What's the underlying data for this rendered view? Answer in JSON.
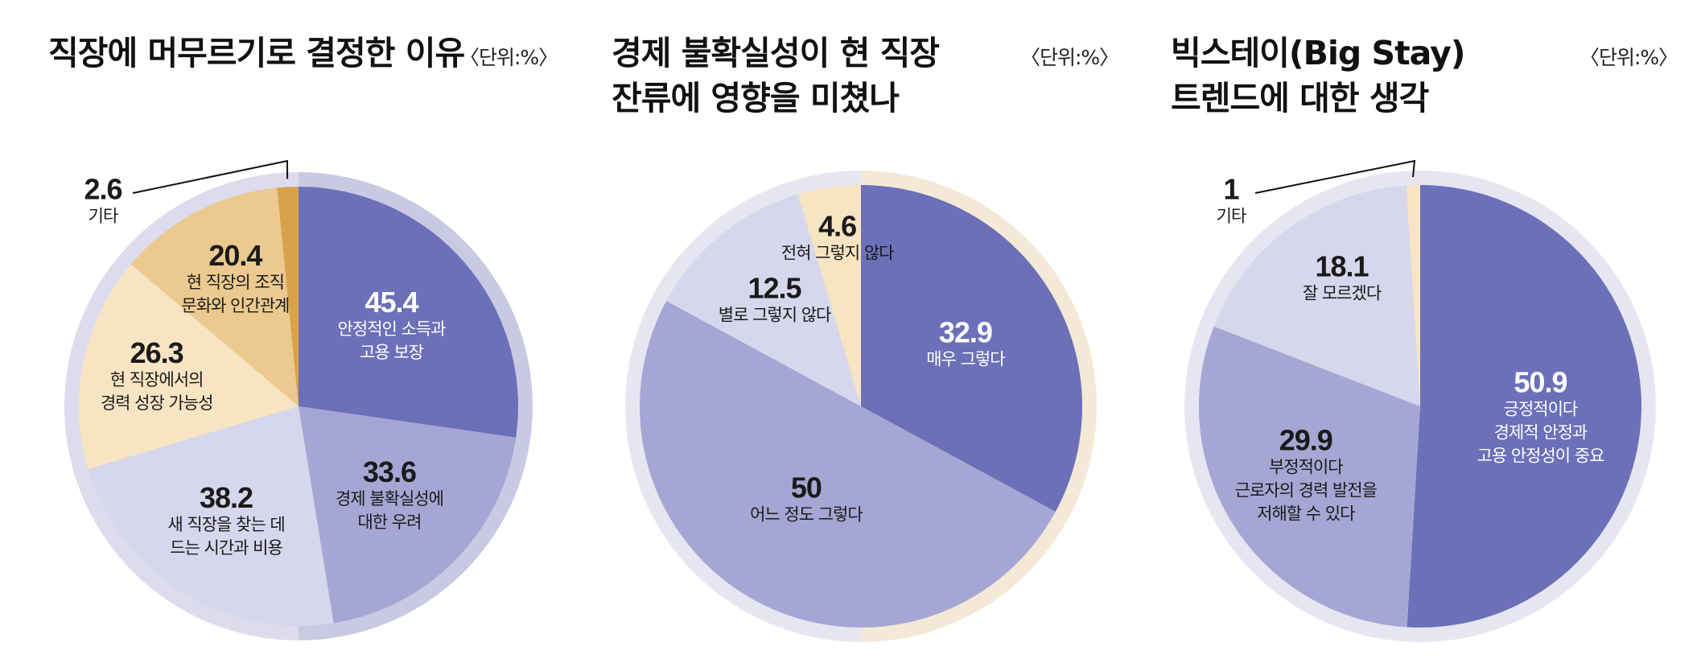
{
  "chart_data": [
    {
      "type": "pie",
      "title": "직장에 머무르기로 결정한 이유",
      "unit": "〈단위:%〉",
      "slices": [
        {
          "value": 45.4,
          "label": [
            "안정적인 소득과",
            "고용 보장"
          ],
          "color": "#6b70b8"
        },
        {
          "value": 33.6,
          "label": [
            "경제 불확실성에",
            "대한 우려"
          ],
          "color": "#a6a6d4"
        },
        {
          "value": 38.2,
          "label": [
            "새 직장을 찾는 데",
            "드는 시간과 비용"
          ],
          "color": "#d6d6ec"
        },
        {
          "value": 26.3,
          "label": [
            "현 직장에서의",
            "경력 성장 가능성"
          ],
          "color": "#f7e4c2"
        },
        {
          "value": 20.4,
          "label": [
            "현 직장의 조직",
            "문화와 인간관계"
          ],
          "color": "#ecc98e"
        },
        {
          "value": 2.6,
          "label": [
            "기타"
          ],
          "color": "#d9a24a"
        }
      ]
    },
    {
      "type": "pie",
      "title": "경제 불확실성이 현 직장 잔류에 영향을 미쳤나",
      "title_lines": [
        "경제 불확실성이 현 직장",
        "잔류에 영향을 미쳤나"
      ],
      "unit": "〈단위:%〉",
      "slices": [
        {
          "value": 32.9,
          "label": [
            "매우 그렇다"
          ],
          "color": "#6b70b8"
        },
        {
          "value": 50,
          "label": [
            "어느 정도 그렇다"
          ],
          "color": "#a6a6d4"
        },
        {
          "value": 12.5,
          "label": [
            "별로 그렇지 않다"
          ],
          "color": "#d6d6ec"
        },
        {
          "value": 4.6,
          "label": [
            "전혀 그렇지 않다"
          ],
          "color": "#f7e4c2"
        }
      ]
    },
    {
      "type": "pie",
      "title": "빅스테이(Big Stay) 트렌드에 대한 생각",
      "title_lines": [
        "빅스테이(Big Stay)",
        "트렌드에 대한 생각"
      ],
      "unit": "〈단위:%〉",
      "slices": [
        {
          "value": 50.9,
          "label": [
            "긍정적이다",
            "경제적 안정과",
            "고용 안정성이 중요"
          ],
          "color": "#6b70b8"
        },
        {
          "value": 29.9,
          "label": [
            "부정적이다",
            "근로자의 경력 발전을",
            "저해할 수 있다"
          ],
          "color": "#a6a6d4"
        },
        {
          "value": 18.1,
          "label": [
            "잘 모르겠다"
          ],
          "color": "#d6d6ec"
        },
        {
          "value": 1,
          "label": [
            "기타"
          ],
          "color": "#f7e4c2"
        }
      ]
    }
  ]
}
